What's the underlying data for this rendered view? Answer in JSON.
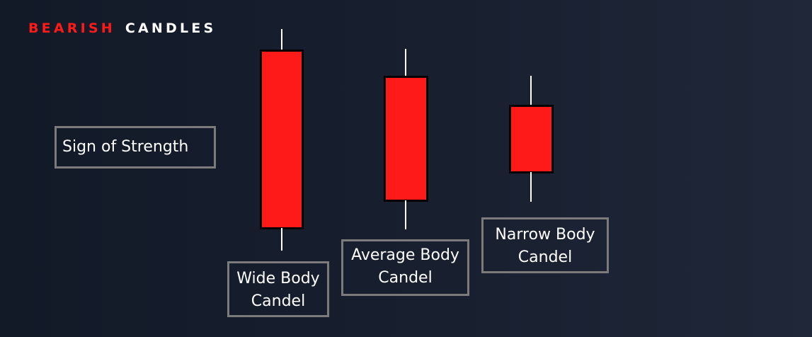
{
  "title": {
    "word1": "BEARISH",
    "word2": "CANDLES"
  },
  "labels": {
    "sign": "Sign  of  Strength",
    "wide_line1": "Wide  Body",
    "wide_line2": "Candel",
    "average_line1": "Average  Body",
    "average_line2": "Candel",
    "narrow_line1": "Narrow Body",
    "narrow_line2": "Candel"
  },
  "colors": {
    "bearish_red": "#ff1a1a",
    "background": "#182030",
    "box_border": "#7b7b7b",
    "wick": "#ffffff"
  }
}
